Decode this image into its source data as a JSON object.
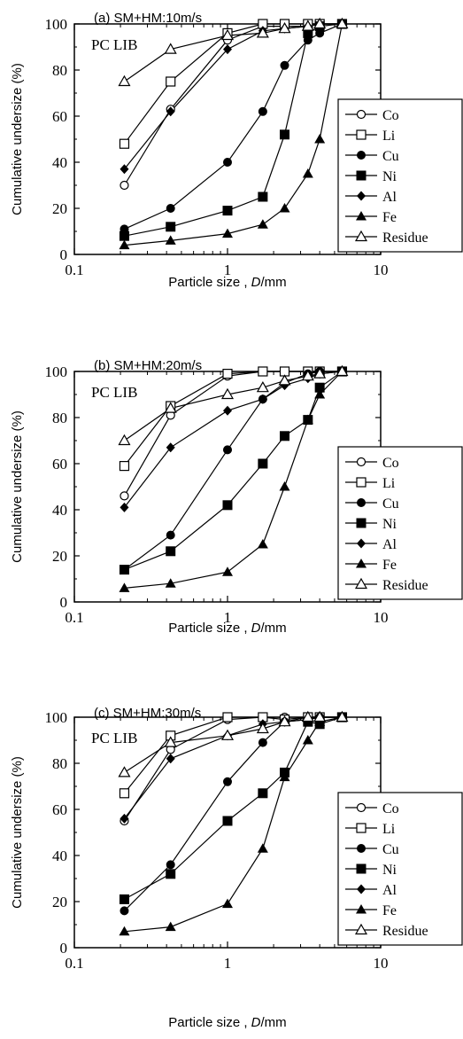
{
  "chart_data": [
    {
      "type": "line",
      "title": "(a) SM+HM:10m/s",
      "annotation": "PC LIB",
      "xlabel": {
        "prefix": "Particle size , ",
        "var": "D",
        "suffix": "/mm"
      },
      "ylabel": "Cumulative undersize (%)",
      "x_scale": "log",
      "xlim": [
        0.1,
        10
      ],
      "ylim": [
        0,
        100
      ],
      "x_ticks": [
        {
          "value": 0.1,
          "label": "0.1"
        },
        {
          "value": 1,
          "label": "1"
        },
        {
          "value": 10,
          "label": "10"
        }
      ],
      "y_ticks": [
        0,
        20,
        40,
        60,
        80,
        100
      ],
      "legend_position": "right",
      "x": [
        0.212,
        0.425,
        1.0,
        1.7,
        2.36,
        3.35,
        4.0,
        5.6
      ],
      "series": [
        {
          "name": "Co",
          "marker": "circle-open",
          "values": [
            30,
            63,
            93,
            99,
            99,
            99,
            100,
            100
          ]
        },
        {
          "name": "Li",
          "marker": "square-open",
          "values": [
            48,
            75,
            96,
            100,
            100,
            100,
            100,
            100
          ]
        },
        {
          "name": "Cu",
          "marker": "circle-filled",
          "values": [
            11,
            20,
            40,
            62,
            82,
            93,
            96,
            100
          ]
        },
        {
          "name": "Ni",
          "marker": "square-filled",
          "values": [
            8,
            12,
            19,
            25,
            52,
            96,
            99,
            100
          ]
        },
        {
          "name": "Al",
          "marker": "diamond-filled",
          "values": [
            37,
            62,
            89,
            97,
            98,
            99,
            100,
            100
          ]
        },
        {
          "name": "Fe",
          "marker": "triangle-filled",
          "values": [
            4,
            6,
            9,
            13,
            20,
            35,
            50,
            100
          ]
        },
        {
          "name": "Residue",
          "marker": "triangle-open",
          "values": [
            75,
            89,
            95,
            96,
            98,
            99,
            100,
            100
          ]
        }
      ]
    },
    {
      "type": "line",
      "title": "(b) SM+HM:20m/s",
      "annotation": "PC LIB",
      "xlabel": {
        "prefix": "Particle size , ",
        "var": "D",
        "suffix": "/mm"
      },
      "ylabel": "Cumulative undersize (%)",
      "x_scale": "log",
      "xlim": [
        0.1,
        10
      ],
      "ylim": [
        0,
        100
      ],
      "x_ticks": [
        {
          "value": 0.1,
          "label": "0.1"
        },
        {
          "value": 1,
          "label": "1"
        },
        {
          "value": 10,
          "label": "10"
        }
      ],
      "y_ticks": [
        0,
        20,
        40,
        60,
        80,
        100
      ],
      "legend_position": "right",
      "x": [
        0.212,
        0.425,
        1.0,
        1.7,
        2.36,
        3.35,
        4.0,
        5.6
      ],
      "series": [
        {
          "name": "Co",
          "marker": "circle-open",
          "values": [
            46,
            81,
            98,
            100,
            100,
            100,
            100,
            100
          ]
        },
        {
          "name": "Li",
          "marker": "square-open",
          "values": [
            59,
            85,
            99,
            100,
            100,
            100,
            100,
            100
          ]
        },
        {
          "name": "Cu",
          "marker": "circle-filled",
          "values": [
            14,
            29,
            66,
            88,
            95,
            99,
            100,
            100
          ]
        },
        {
          "name": "Ni",
          "marker": "square-filled",
          "values": [
            14,
            22,
            42,
            60,
            72,
            79,
            93,
            100
          ]
        },
        {
          "name": "Al",
          "marker": "diamond-filled",
          "values": [
            41,
            67,
            83,
            88,
            94,
            97,
            99,
            100
          ]
        },
        {
          "name": "Fe",
          "marker": "triangle-filled",
          "values": [
            6,
            8,
            13,
            25,
            50,
            79,
            90,
            100
          ]
        },
        {
          "name": "Residue",
          "marker": "triangle-open",
          "values": [
            70,
            84,
            90,
            93,
            96,
            98,
            99,
            100
          ]
        }
      ]
    },
    {
      "type": "line",
      "title": "(c) SM+HM:30m/s",
      "annotation": "PC LIB",
      "xlabel": {
        "prefix": "Particle size , ",
        "var": "D",
        "suffix": "/mm"
      },
      "ylabel": "Cumulative undersize (%)",
      "x_scale": "log",
      "xlim": [
        0.1,
        10
      ],
      "ylim": [
        0,
        100
      ],
      "x_ticks": [
        {
          "value": 0.1,
          "label": "0.1"
        },
        {
          "value": 1,
          "label": "1"
        },
        {
          "value": 10,
          "label": "10"
        }
      ],
      "y_ticks": [
        0,
        20,
        40,
        60,
        80,
        100
      ],
      "legend_position": "right",
      "x": [
        0.212,
        0.425,
        1.0,
        1.7,
        2.36,
        3.35,
        4.0,
        5.6
      ],
      "series": [
        {
          "name": "Co",
          "marker": "circle-open",
          "values": [
            55,
            86,
            99,
            100,
            100,
            100,
            100,
            100
          ]
        },
        {
          "name": "Li",
          "marker": "square-open",
          "values": [
            67,
            92,
            100,
            100,
            99,
            100,
            100,
            100
          ]
        },
        {
          "name": "Cu",
          "marker": "circle-filled",
          "values": [
            16,
            36,
            72,
            89,
            98,
            99,
            100,
            100
          ]
        },
        {
          "name": "Ni",
          "marker": "square-filled",
          "values": [
            21,
            32,
            55,
            67,
            76,
            98,
            97,
            100
          ]
        },
        {
          "name": "Al",
          "marker": "diamond-filled",
          "values": [
            56,
            82,
            92,
            97,
            98,
            99,
            100,
            100
          ]
        },
        {
          "name": "Fe",
          "marker": "triangle-filled",
          "values": [
            7,
            9,
            19,
            43,
            74,
            90,
            98,
            100
          ]
        },
        {
          "name": "Residue",
          "marker": "triangle-open",
          "values": [
            76,
            89,
            92,
            95,
            98,
            100,
            100,
            100
          ]
        }
      ]
    }
  ]
}
